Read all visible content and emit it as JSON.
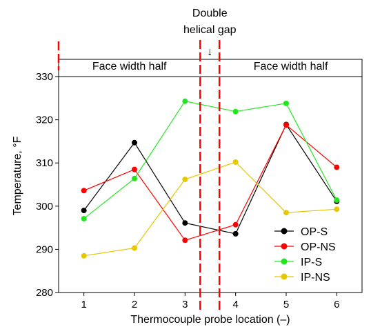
{
  "chart_data": {
    "type": "line",
    "title": "",
    "xlabel": "Thermocouple probe location (–)",
    "ylabel": "Temperature, °F",
    "x": [
      1,
      2,
      3,
      4,
      5,
      6
    ],
    "xlim": [
      0.5,
      6.5
    ],
    "ylim": [
      280,
      334
    ],
    "xticks": [
      1,
      2,
      3,
      4,
      5,
      6
    ],
    "yticks": [
      280,
      290,
      300,
      310,
      320,
      330
    ],
    "grid": false,
    "legend_position": "bottom-right",
    "series": [
      {
        "name": "OP-S",
        "color": "#000000",
        "values": [
          299.0,
          314.7,
          296.1,
          293.6,
          318.9,
          301.1
        ]
      },
      {
        "name": "OP-NS",
        "color": "#ff0000",
        "values": [
          303.6,
          308.5,
          292.1,
          295.7,
          318.8,
          309.0
        ]
      },
      {
        "name": "IP-S",
        "color": "#22e622",
        "values": [
          297.1,
          306.4,
          324.3,
          321.9,
          323.8,
          301.4
        ]
      },
      {
        "name": "IP-NS",
        "color": "#e6c700",
        "values": [
          288.5,
          290.3,
          306.2,
          310.2,
          298.5,
          299.3
        ]
      }
    ],
    "annotations": {
      "reference_line_value": 330,
      "gap_boundaries_x": [
        3.3,
        3.68
      ],
      "edge_marker_x": 0.5,
      "left_label": "Face width half",
      "right_label": "Face width half",
      "gap_label_line1": "Double",
      "gap_label_line2": "helical gap",
      "arrow_glyph": "↓"
    }
  }
}
